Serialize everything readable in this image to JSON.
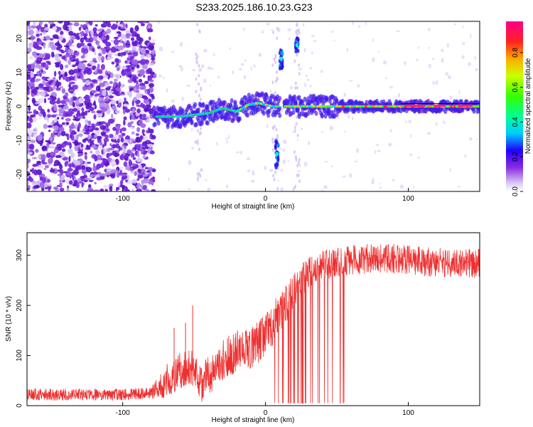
{
  "title": "S233.2025.186.10.23.G23",
  "chart_data": [
    {
      "type": "heatmap",
      "xlabel": "Height of straight line (km)",
      "ylabel": "Frequency (Hz)",
      "xlim": [
        -167,
        150
      ],
      "ylim": [
        -25,
        25
      ],
      "x_ticks": [
        -100,
        0,
        100
      ],
      "y_ticks": [
        -20,
        -10,
        0,
        10,
        20
      ],
      "colorbar": {
        "label": "Normalized spectral amplitude",
        "ticks": [
          0.0,
          0.2,
          0.4,
          0.6,
          0.8
        ],
        "range": [
          0.0,
          0.98
        ]
      },
      "ridge": [
        {
          "x": -78,
          "y": -3
        },
        {
          "x": -70,
          "y": -3
        },
        {
          "x": -60,
          "y": -3
        },
        {
          "x": -50,
          "y": -2.5
        },
        {
          "x": -40,
          "y": -2
        },
        {
          "x": -30,
          "y": -0.5
        },
        {
          "x": -20,
          "y": -1.5
        },
        {
          "x": -12,
          "y": 0.5
        },
        {
          "x": -5,
          "y": 1
        },
        {
          "x": 5,
          "y": 0
        },
        {
          "x": 15,
          "y": 0
        },
        {
          "x": 30,
          "y": 0
        },
        {
          "x": 50,
          "y": 0
        },
        {
          "x": 70,
          "y": 0
        },
        {
          "x": 90,
          "y": 0
        },
        {
          "x": 110,
          "y": 0
        },
        {
          "x": 130,
          "y": 0
        },
        {
          "x": 150,
          "y": 0
        }
      ],
      "blobs": [
        {
          "x": 11,
          "y": 14,
          "size": 3
        },
        {
          "x": 22,
          "y": 18,
          "size": 2
        },
        {
          "x": 8,
          "y": -14,
          "size": 4
        }
      ]
    },
    {
      "type": "line",
      "xlabel": "Height of straight line (km)",
      "ylabel": "SNR (10 * v/v)",
      "xlim": [
        -167,
        150
      ],
      "ylim": [
        0,
        345
      ],
      "x_ticks": [
        -100,
        0,
        100
      ],
      "y_ticks": [
        0,
        100,
        200,
        300
      ],
      "color": "#ee3030",
      "trend": [
        {
          "x": -167,
          "y": 22
        },
        {
          "x": -100,
          "y": 22
        },
        {
          "x": -80,
          "y": 25
        },
        {
          "x": -70,
          "y": 50
        },
        {
          "x": -60,
          "y": 70
        },
        {
          "x": -50,
          "y": 75
        },
        {
          "x": -45,
          "y": 40
        },
        {
          "x": -40,
          "y": 60
        },
        {
          "x": -30,
          "y": 90
        },
        {
          "x": -20,
          "y": 110
        },
        {
          "x": -10,
          "y": 115
        },
        {
          "x": 0,
          "y": 140
        },
        {
          "x": 10,
          "y": 185
        },
        {
          "x": 20,
          "y": 230
        },
        {
          "x": 30,
          "y": 265
        },
        {
          "x": 40,
          "y": 280
        },
        {
          "x": 60,
          "y": 290
        },
        {
          "x": 80,
          "y": 295
        },
        {
          "x": 100,
          "y": 290
        },
        {
          "x": 120,
          "y": 285
        },
        {
          "x": 150,
          "y": 285
        }
      ],
      "noise_amplitude": [
        {
          "x": -167,
          "y": 12
        },
        {
          "x": -80,
          "y": 12
        },
        {
          "x": -70,
          "y": 35
        },
        {
          "x": 0,
          "y": 45
        },
        {
          "x": 40,
          "y": 30
        },
        {
          "x": 150,
          "y": 30
        }
      ],
      "dropout_range": [
        5,
        58
      ]
    }
  ]
}
